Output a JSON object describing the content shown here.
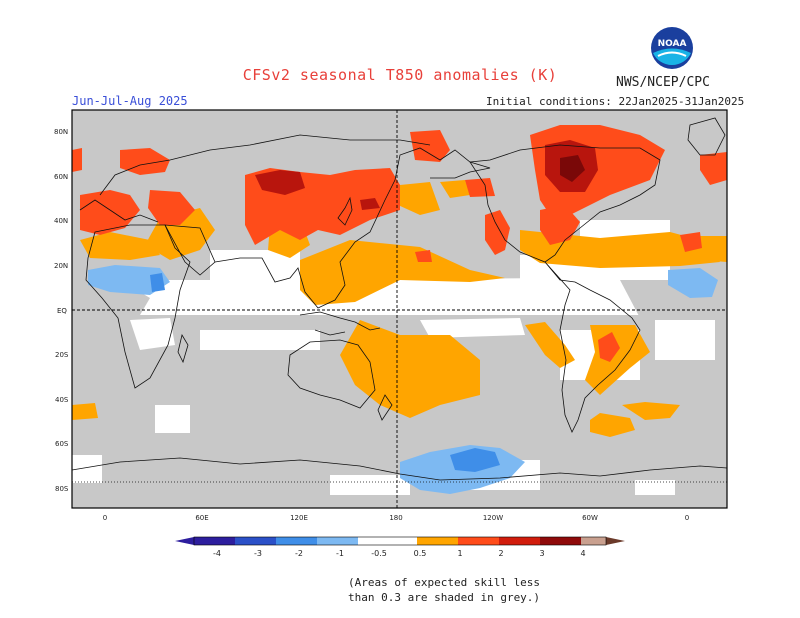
{
  "header": {
    "title": "CFSv2 seasonal T850 anomalies (K)",
    "agency": "NWS/NCEP/CPC",
    "season": "Jun-Jul-Aug 2025",
    "initial_conditions": "Initial conditions: 22Jan2025-31Jan2025",
    "logo_text": "NOAA"
  },
  "map": {
    "lat_labels": [
      "80N",
      "60N",
      "40N",
      "20N",
      "EQ",
      "20S",
      "40S",
      "60S",
      "80S"
    ],
    "lon_labels": [
      "0",
      "60E",
      "120E",
      "180",
      "120W",
      "60W",
      "0"
    ],
    "projection_center": "180",
    "skill_mask_color": "#c8c8c8"
  },
  "colorbar": {
    "tick_labels": [
      "-4",
      "-3",
      "-2",
      "-1",
      "-0.5",
      "0.5",
      "1",
      "2",
      "3",
      "4"
    ],
    "colors": [
      "#2d1e9e",
      "#2b50c8",
      "#3f8ee8",
      "#7db9f2",
      "#ffffff",
      "#ffa500",
      "#ff4c1a",
      "#d11c0c",
      "#8f0a0a",
      "#c9a08f",
      "#6b3a2a"
    ]
  },
  "legend": {
    "note_line1": "(Areas of expected skill less",
    "note_line2": "than 0.3 are shaded in grey.)"
  }
}
